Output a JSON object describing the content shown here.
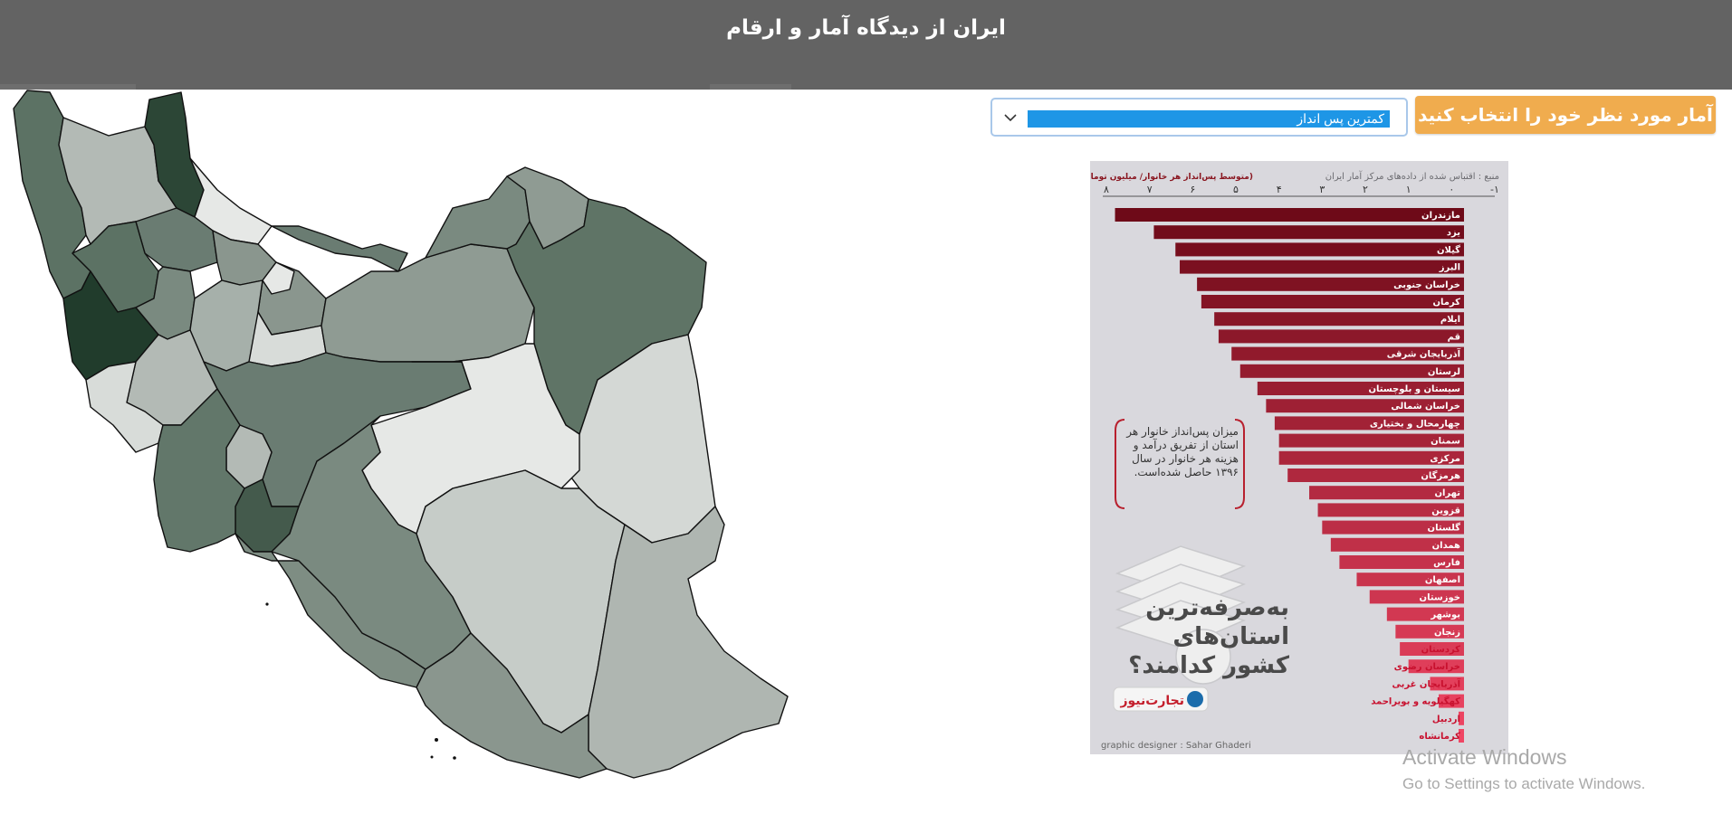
{
  "header": {
    "title": "ایران از دیدگاه آمار و ارقام"
  },
  "controls": {
    "select_button_label": "آمار مورد نظر خود را انتخاب کنید",
    "dropdown_value": "کمترین پس انداز"
  },
  "colors": {
    "header_bg": "#636363",
    "accent_orange": "#f0ac4e",
    "selection_blue": "#1e96e6",
    "map_scale": [
      "#e6e8e6",
      "#c6ccc8",
      "#a6b0aa",
      "#8a968e",
      "#6a7c72",
      "#4a6252",
      "#2c4636"
    ]
  },
  "infographic": {
    "source_text": "منبع : اقتباس شده از داده‌های مرکز آمار ایران",
    "unit_text": "(متوسط پس‌انداز هر خانوار/ میلیون تومان)",
    "axis_ticks": [
      "-۱",
      "۰",
      "۱",
      "۲",
      "۳",
      "۴",
      "۵",
      "۶",
      "۷",
      "۸"
    ],
    "note": "میزان پس‌انداز خانوار هر استان از تفریق درآمد و هزینه هر خانوار در سال ۱۳۹۶ حاصل شده‌است.",
    "headline": "به‌صرفه‌ترین استان‌های کشور کدامند؟",
    "logo_text": "تجارت‌نیوز",
    "designer": "graphic designer : Sahar Ghaderi"
  },
  "chart_data": {
    "type": "bar",
    "xlabel": "(متوسط پس‌انداز هر خانوار/ میلیون تومان)",
    "xlim": [
      -1,
      8
    ],
    "categories": [
      "مازندران",
      "یزد",
      "گیلان",
      "البرز",
      "خراسان جنوبی",
      "کرمان",
      "ایلام",
      "قم",
      "آذربایجان شرقی",
      "لرستان",
      "سیستان و بلوچستان",
      "خراسان شمالی",
      "چهارمحال و بختیاری",
      "سمنان",
      "مرکزی",
      "هرمزگان",
      "تهران",
      "قزوین",
      "گلستان",
      "همدان",
      "فارس",
      "اصفهان",
      "خوزستان",
      "بوشهر",
      "زنجان",
      "کردستان",
      "خراسان رضوی",
      "آذربایجان غربی",
      "کهگیلویه و بویراحمد",
      "اردبیل",
      "کرمانشاه"
    ],
    "values": [
      7.8,
      6.9,
      6.4,
      6.3,
      5.9,
      5.8,
      5.5,
      5.4,
      5.1,
      4.9,
      4.5,
      4.3,
      4.1,
      4.0,
      4.0,
      3.8,
      3.3,
      3.1,
      3.0,
      2.8,
      2.6,
      2.2,
      1.9,
      1.5,
      1.3,
      1.2,
      1.0,
      0.5,
      0.3,
      -0.2,
      -0.3
    ]
  },
  "watermark": {
    "title": "Activate Windows",
    "subtitle": "Go to Settings to activate Windows."
  }
}
